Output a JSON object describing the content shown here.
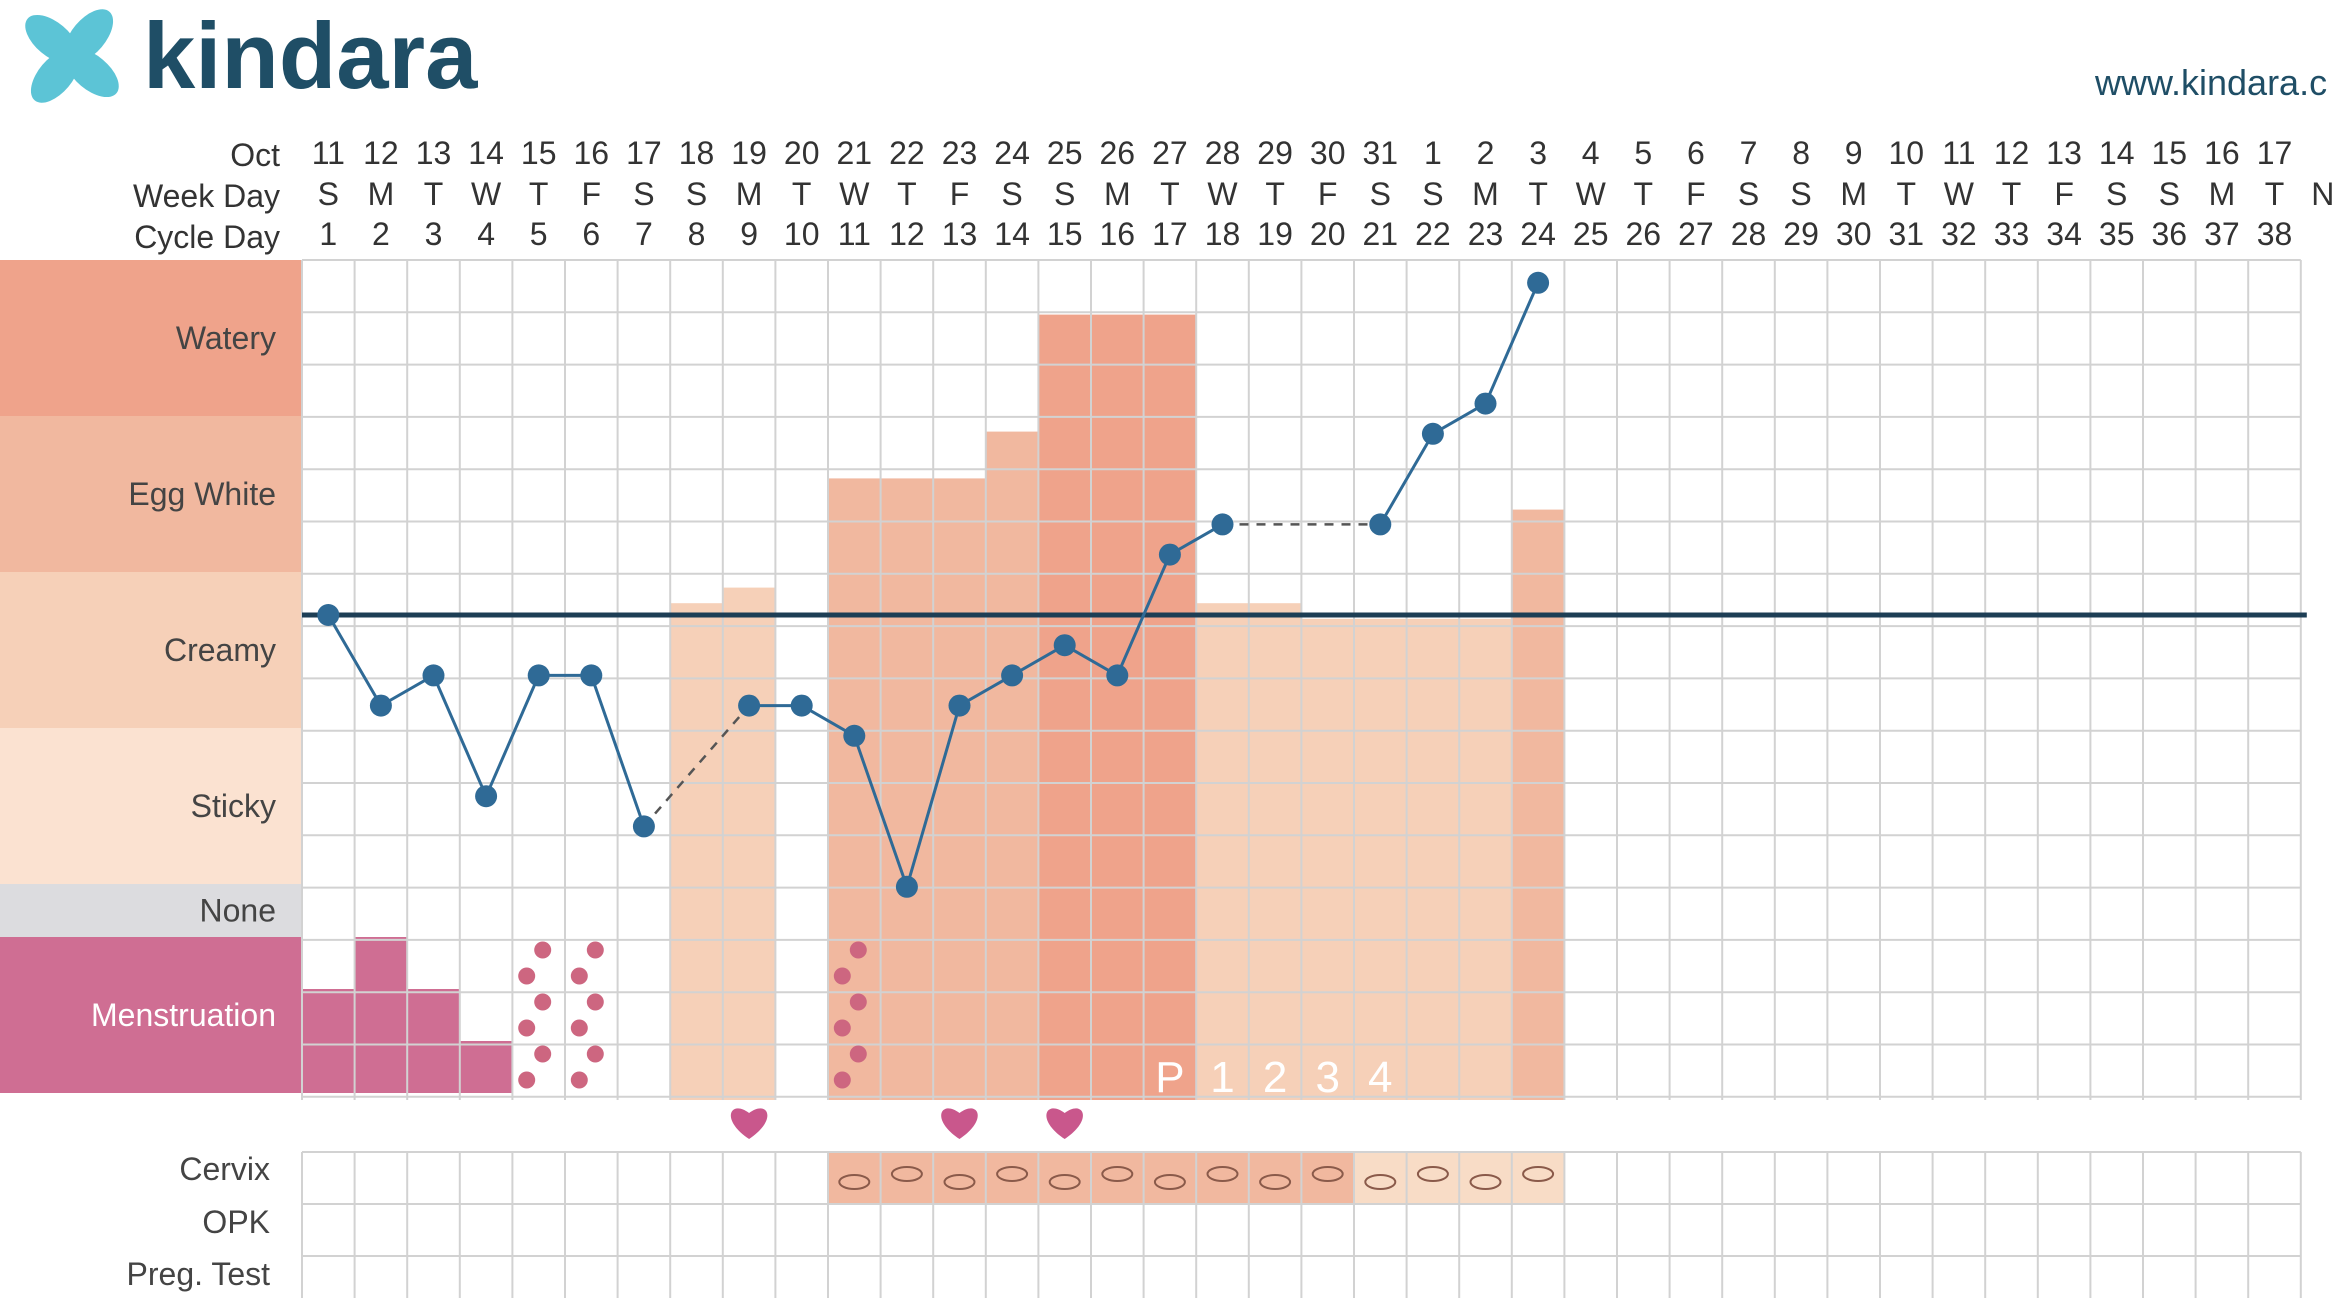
{
  "brand": {
    "name": "kindara",
    "url": "www.kindara.c"
  },
  "header": {
    "month_label": "Oct",
    "weekday_label": "Week Day",
    "cycle_day_label": "Cycle Day",
    "dates": [
      "11",
      "12",
      "13",
      "14",
      "15",
      "16",
      "17",
      "18",
      "19",
      "20",
      "21",
      "22",
      "23",
      "24",
      "25",
      "26",
      "27",
      "28",
      "29",
      "30",
      "31",
      "1",
      "2",
      "3",
      "4",
      "5",
      "6",
      "7",
      "8",
      "9",
      "10",
      "11",
      "12",
      "13",
      "14",
      "15",
      "16",
      "17"
    ],
    "weekdays": [
      "S",
      "M",
      "T",
      "W",
      "T",
      "F",
      "S",
      "S",
      "M",
      "T",
      "W",
      "T",
      "F",
      "S",
      "S",
      "M",
      "T",
      "W",
      "T",
      "F",
      "S",
      "S",
      "M",
      "T",
      "W",
      "T",
      "F",
      "S",
      "S",
      "M",
      "T",
      "W",
      "T",
      "F",
      "S",
      "S",
      "M",
      "T"
    ],
    "overflow_weekday": "N"
  },
  "rows": {
    "fluid_labels": [
      "Watery",
      "Egg White",
      "Creamy",
      "Sticky",
      "None",
      "Menstruation"
    ],
    "bottom_labels": [
      "Cervix",
      "OPK",
      "Preg. Test"
    ]
  },
  "colors": {
    "watery": "#efa38b",
    "egg_white": "#f1b89f",
    "creamy": "#f6d0b8",
    "sticky": "#fbe2d1",
    "none": "#dcdcdf",
    "menstruation": "#cf6e93",
    "line": "#2f6a96",
    "coverline": "#1d3e55",
    "heart": "#c9578c",
    "spot": "#cd6680",
    "cervix": "#f1b89f",
    "cervix_light": "#f8dcc6"
  },
  "chart_data": {
    "type": "line",
    "x_label": "Cycle Day",
    "cycle_days": [
      1,
      2,
      3,
      4,
      5,
      6,
      7,
      8,
      9,
      10,
      11,
      12,
      13,
      14,
      15,
      16,
      17,
      18,
      19,
      20,
      21,
      22,
      23,
      24,
      25,
      26,
      27,
      28,
      29,
      30,
      31,
      32,
      33,
      34,
      35,
      36,
      37,
      38
    ],
    "temperature_series": [
      {
        "day": 1,
        "value": 0.0
      },
      {
        "day": 2,
        "value": -3.0
      },
      {
        "day": 3,
        "value": -2.0
      },
      {
        "day": 4,
        "value": -6.0
      },
      {
        "day": 5,
        "value": -2.0
      },
      {
        "day": 6,
        "value": -2.0
      },
      {
        "day": 7,
        "value": -7.0
      },
      {
        "day": 9,
        "value": -3.0
      },
      {
        "day": 10,
        "value": -3.0
      },
      {
        "day": 11,
        "value": -4.0
      },
      {
        "day": 12,
        "value": -9.0
      },
      {
        "day": 13,
        "value": -3.0
      },
      {
        "day": 14,
        "value": -2.0
      },
      {
        "day": 15,
        "value": -1.0
      },
      {
        "day": 16,
        "value": -2.0
      },
      {
        "day": 17,
        "value": 2.0
      },
      {
        "day": 18,
        "value": 3.0
      },
      {
        "day": 21,
        "value": 3.0
      },
      {
        "day": 22,
        "value": 6.0
      },
      {
        "day": 23,
        "value": 7.0
      },
      {
        "day": 24,
        "value": 11.0
      }
    ],
    "dashed_gaps": [
      [
        7,
        9
      ],
      [
        18,
        21
      ]
    ],
    "coverline": 0.0,
    "fluid_per_day": [
      {
        "day": 1,
        "level": "menstruation",
        "amount": 2
      },
      {
        "day": 2,
        "level": "menstruation",
        "amount": 3
      },
      {
        "day": 3,
        "level": "menstruation",
        "amount": 2
      },
      {
        "day": 4,
        "level": "menstruation",
        "amount": 1
      },
      {
        "day": 5,
        "level": "spotting"
      },
      {
        "day": 6,
        "level": "spotting"
      },
      {
        "day": 8,
        "level": "creamy",
        "fill": 0.8
      },
      {
        "day": 9,
        "level": "creamy",
        "fill": 0.9
      },
      {
        "day": 11,
        "level": "egg_white",
        "fill": 0.6,
        "spotting": true
      },
      {
        "day": 12,
        "level": "egg_white",
        "fill": 0.6
      },
      {
        "day": 13,
        "level": "egg_white",
        "fill": 0.6
      },
      {
        "day": 14,
        "level": "egg_white",
        "fill": 0.9
      },
      {
        "day": 15,
        "level": "watery",
        "fill": 0.65
      },
      {
        "day": 16,
        "level": "watery",
        "fill": 0.65
      },
      {
        "day": 17,
        "level": "watery",
        "fill": 0.65
      },
      {
        "day": 18,
        "level": "creamy",
        "fill": 0.8
      },
      {
        "day": 19,
        "level": "creamy",
        "fill": 0.8
      },
      {
        "day": 20,
        "level": "creamy",
        "fill": 0.7
      },
      {
        "day": 21,
        "level": "creamy",
        "fill": 0.7
      },
      {
        "day": 22,
        "level": "creamy",
        "fill": 0.7
      },
      {
        "day": 23,
        "level": "creamy",
        "fill": 0.7
      },
      {
        "day": 24,
        "level": "egg_white",
        "fill": 0.4
      }
    ],
    "intercourse_days": [
      9,
      13,
      15
    ],
    "peak_labels": [
      {
        "day": 17,
        "label": "P"
      },
      {
        "day": 18,
        "label": "1"
      },
      {
        "day": 19,
        "label": "2"
      },
      {
        "day": 20,
        "label": "3"
      },
      {
        "day": 21,
        "label": "4"
      }
    ],
    "cervix_days": [
      11,
      12,
      13,
      14,
      15,
      16,
      17,
      18,
      19,
      20,
      21,
      22,
      23,
      24
    ],
    "grid": true,
    "legend": "left"
  }
}
